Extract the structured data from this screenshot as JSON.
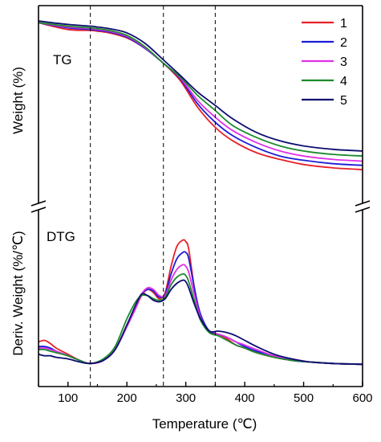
{
  "chart_data": {
    "type": "line",
    "xlabel": "Temperature (℃)",
    "xlim": [
      50,
      600
    ],
    "x_ticks": [
      "100",
      "200",
      "300",
      "400",
      "500",
      "600"
    ],
    "x_tick_values": [
      100,
      200,
      300,
      400,
      500,
      600
    ],
    "reference_lines_x": [
      138,
      262,
      350
    ],
    "legend_position": "top-right",
    "panels": [
      {
        "id": "tg",
        "label": "TG",
        "ylabel": "Weight (%)",
        "ylim": [
          0,
          100
        ],
        "x": [
          50,
          100,
          138,
          150,
          170,
          200,
          230,
          262,
          290,
          320,
          350,
          380,
          420,
          460,
          500,
          550,
          600
        ],
        "series": [
          {
            "name": "1",
            "color": "#e8202a",
            "values": [
              97,
              93,
              92.5,
              92,
              91,
              88,
              82,
              73,
              63,
              47,
              35,
              27,
              20,
              16,
              13,
              11,
              10
            ]
          },
          {
            "name": "2",
            "color": "#1c1cd6",
            "values": [
              97,
              94,
              93,
              92.5,
              91.5,
              88.5,
              82,
              73,
              64,
              49,
              38,
              30,
              23,
              18,
              15.5,
              13.5,
              12.5
            ]
          },
          {
            "name": "3",
            "color": "#e030e8",
            "values": [
              97,
              94.5,
              93.5,
              93,
              92,
              89,
              82.5,
              73,
              64.5,
              51,
              41,
              33,
              26,
              21,
              18,
              16,
              15
            ]
          },
          {
            "name": "4",
            "color": "#1c8a2c",
            "values": [
              97,
              95,
              94,
              93.5,
              92.5,
              89.5,
              83,
              73,
              65,
              54,
              45,
              36,
              29,
              24,
              21,
              19,
              18
            ]
          },
          {
            "name": "5",
            "color": "#0d0d70",
            "values": [
              98,
              96,
              95,
              94.5,
              93.5,
              91,
              85,
              75,
              66,
              56,
              48,
              40,
              32,
              27,
              24,
              22,
              21
            ]
          }
        ]
      },
      {
        "id": "dtg",
        "label": "DTG",
        "ylabel": "Deriv. Weight (%/℃)",
        "ylim": [
          0,
          100
        ],
        "x": [
          50,
          60,
          70,
          80,
          100,
          120,
          138,
          160,
          180,
          200,
          215,
          225,
          235,
          245,
          255,
          265,
          275,
          285,
          295,
          300,
          305,
          315,
          325,
          340,
          355,
          370,
          385,
          400,
          420,
          450,
          480,
          510,
          550,
          600
        ],
        "series": [
          {
            "name": "1",
            "color": "#e8202a",
            "values": [
              18,
              19,
              17,
              14,
              10,
              6,
              4,
              6,
              13,
              28,
              40,
              48,
              52,
              50,
              46,
              50,
              67,
              80,
              84,
              83,
              78,
              52,
              35,
              25,
              23,
              20,
              16,
              14,
              11,
              8,
              6,
              5,
              4,
              3.5
            ]
          },
          {
            "name": "2",
            "color": "#1c1cd6",
            "values": [
              15,
              15,
              14,
              12,
              9,
              6,
              4,
              6,
              13,
              28,
              40,
              49,
              52,
              51,
              47,
              49,
              62,
              72,
              76,
              76,
              72,
              52,
              36,
              25,
              23,
              21,
              18,
              15,
              12,
              9,
              6,
              5,
              4,
              3.5
            ]
          },
          {
            "name": "3",
            "color": "#e030e8",
            "values": [
              14,
              14,
              13,
              12,
              9,
              6,
              4,
              6,
              13,
              28,
              40,
              49,
              53,
              52,
              48,
              48,
              58,
              65,
              68,
              67,
              63,
              48,
              34,
              24,
              23,
              21,
              18,
              16,
              13,
              9,
              7,
              5,
              4,
              3.5
            ]
          },
          {
            "name": "4",
            "color": "#1c8a2c",
            "values": [
              13,
              13,
              12,
              11,
              9,
              6,
              4,
              7,
              15,
              33,
              44,
              48,
              48,
              46,
              45,
              47,
              55,
              60,
              62,
              61,
              57,
              44,
              32,
              24,
              22,
              19,
              16,
              14,
              11,
              8,
              6,
              5,
              4,
              3.5
            ]
          },
          {
            "name": "5",
            "color": "#0d0d70",
            "values": [
              10,
              9,
              9,
              8,
              7,
              5,
              4,
              6,
              13,
              29,
              42,
              49,
              48,
              45,
              44,
              46,
              52,
              56,
              58,
              57,
              53,
              42,
              33,
              25,
              25,
              24,
              22,
              19,
              15,
              10,
              7,
              5,
              4,
              3.5
            ]
          }
        ]
      }
    ]
  }
}
